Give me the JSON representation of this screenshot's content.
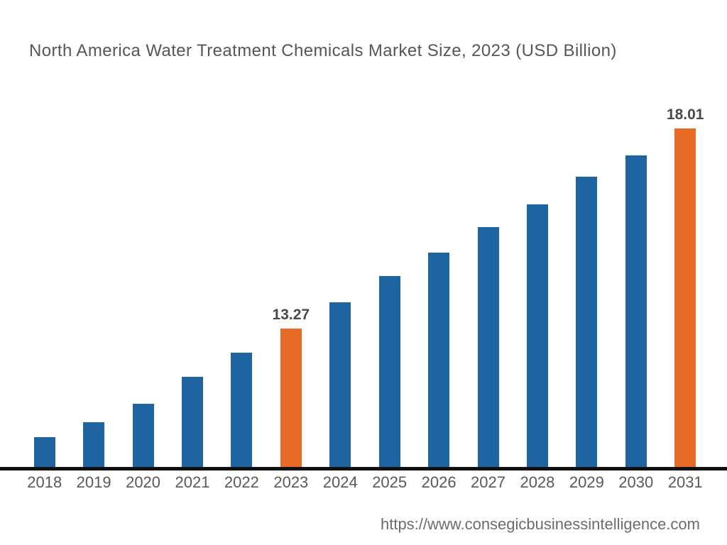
{
  "title": "North America Water Treatment Chemicals Market Size, 2023 (USD Billion)",
  "footer": {
    "url": "https://www.consegicbusinessintelligence.com"
  },
  "colors": {
    "bar_default": "#1d64a0",
    "bar_highlight": "#e66c26",
    "axis_line": "#101010",
    "title_text": "#55565a",
    "tick_text": "#58595b",
    "value_label_text": "#48494b",
    "footer_text": "#6b6c6e",
    "background": "#ffffff"
  },
  "chart_data": {
    "type": "bar",
    "title": "North America Water Treatment Chemicals Market Size, 2023 (USD Billion)",
    "xlabel": "",
    "ylabel": "",
    "categories": [
      "2018",
      "2019",
      "2020",
      "2021",
      "2022",
      "2023",
      "2024",
      "2025",
      "2026",
      "2027",
      "2028",
      "2029",
      "2030",
      "2031"
    ],
    "values": [
      10.7,
      11.05,
      11.49,
      12.13,
      12.71,
      13.27,
      13.89,
      14.51,
      15.07,
      15.67,
      16.21,
      16.87,
      17.37,
      18.01
    ],
    "highlight_categories": [
      "2023",
      "2031"
    ],
    "labeled_points": [
      {
        "category": "2023",
        "value_label": "13.27"
      },
      {
        "category": "2031",
        "value_label": "18.01"
      }
    ],
    "ylim": [
      9.98,
      18.7
    ],
    "grid": false,
    "legend": false,
    "note": "Only 2023 and 2031 carry visible data labels; other values estimated from bar heights"
  }
}
